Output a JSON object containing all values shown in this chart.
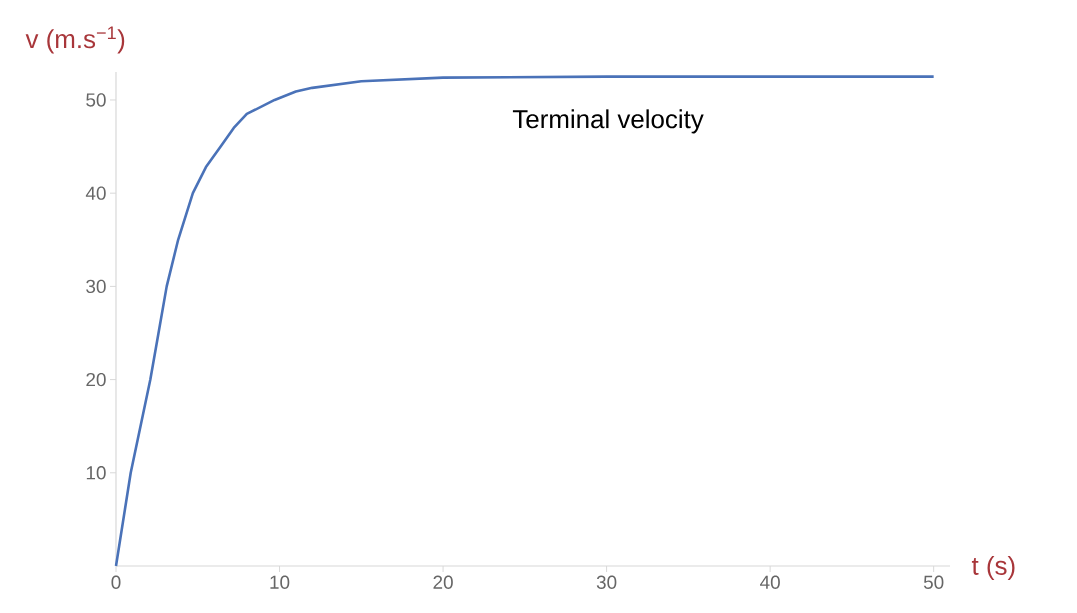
{
  "chart_data": {
    "type": "line",
    "xlabel": "t (s)",
    "ylabel": "v (m.s$^{−1}$)",
    "x": [
      0,
      0.9,
      1.5,
      2.1,
      2.6,
      3.1,
      3.8,
      4.7,
      5.5,
      6.4,
      7.2,
      8,
      9.7,
      11,
      12,
      15,
      20,
      30,
      50
    ],
    "series": [
      {
        "color": "#4a72b8",
        "values": [
          0,
          10,
          15,
          20,
          25,
          30,
          35,
          40,
          42.8,
          45,
          47,
          48.5,
          50,
          50.9,
          51.3,
          52,
          52.4,
          52.5,
          52.5
        ]
      }
    ],
    "xlim": [
      0,
      51
    ],
    "ylim": [
      0,
      53
    ],
    "xticks": [
      0,
      10,
      20,
      30,
      40,
      50
    ],
    "yticks": [
      10,
      20,
      30,
      40,
      50
    ],
    "grid": false,
    "marker": "none",
    "line_style": "solid",
    "annotations": [
      "Terminal velocity"
    ]
  }
}
